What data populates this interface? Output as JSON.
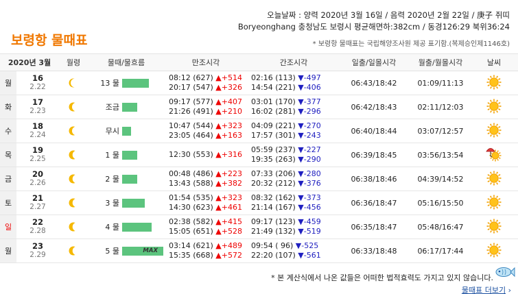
{
  "header": {
    "today_line": "오늘날짜 : 양력 2020년 3월 16일 / 음력 2020년 2월 22일 / 庚子 쥐띠",
    "location_line": "Boryeonghang 충청남도 보령시 평균해면하:382cm / 동경126:29 북위36:24",
    "title": "보령항 물때표",
    "note": "* 보령항 물때표는 국립해양조사원 제공 표기함.(복제승인제1146호)"
  },
  "table": {
    "headers": {
      "date": "2020년 3월",
      "moon": "월령",
      "tide": "물때/물흐름",
      "high": "만조시각",
      "low": "간조시각",
      "sun": "일출/일몰시각",
      "moonrise": "월출/월몰시각",
      "weather": "날씨"
    },
    "rows": [
      {
        "day": "월",
        "date": "16",
        "lunar": "2.22",
        "moon_phase": "waning-crescent-thick",
        "tide_label": "13 물",
        "tide_level": 0.65,
        "max": "",
        "hi1": "08:12 (627)",
        "hi1d": "▲+514",
        "hi2": "20:17 (547)",
        "hi2d": "▲+326",
        "lo1": "02:16 (113)",
        "lo1d": "▼-497",
        "lo2": "14:54 (221)",
        "lo2d": "▼-406",
        "sun": "06:43/18:42",
        "moon": "01:09/11:13",
        "weather": "sunny-icon"
      },
      {
        "day": "화",
        "date": "17",
        "lunar": "2.23",
        "moon_phase": "waning-crescent",
        "tide_label": "조금",
        "tide_level": 0.36,
        "max": "",
        "hi1": "09:17 (577)",
        "hi1d": "▲+407",
        "hi2": "21:26 (491)",
        "hi2d": "▲+210",
        "lo1": "03:01 (170)",
        "lo1d": "▼-377",
        "lo2": "16:02 (281)",
        "lo2d": "▼-296",
        "sun": "06:42/18:43",
        "moon": "02:11/12:03",
        "weather": "sunny-icon"
      },
      {
        "day": "수",
        "date": "18",
        "lunar": "2.24",
        "moon_phase": "waning-crescent",
        "tide_label": "무시",
        "tide_level": 0.22,
        "max": "",
        "hi1": "10:47 (544)",
        "hi1d": "▲+323",
        "hi2": "23:05 (464)",
        "hi2d": "▲+163",
        "lo1": "04:09 (221)",
        "lo1d": "▼-270",
        "lo2": "17:57 (301)",
        "lo2d": "▼-243",
        "sun": "06:40/18:44",
        "moon": "03:07/12:57",
        "weather": "sunny-icon"
      },
      {
        "day": "목",
        "date": "19",
        "lunar": "2.25",
        "moon_phase": "waning-crescent-thin",
        "tide_label": "1 물",
        "tide_level": 0.36,
        "max": "",
        "hi1": "12:30 (553)",
        "hi1d": "▲+316",
        "hi2": "",
        "hi2d": "",
        "lo1": "05:59 (237)",
        "lo1d": "▼-227",
        "lo2": "19:35 (263)",
        "lo2d": "▼-290",
        "sun": "06:39/18:45",
        "moon": "03:56/13:54",
        "weather": "umbrella-sun-icon"
      },
      {
        "day": "금",
        "date": "20",
        "lunar": "2.26",
        "moon_phase": "waning-crescent-thin",
        "tide_label": "2 물",
        "tide_level": 0.36,
        "max": "",
        "hi1": "00:48 (486)",
        "hi1d": "▲+223",
        "hi2": "13:43 (588)",
        "hi2d": "▲+382",
        "lo1": "07:33 (206)",
        "lo1d": "▼-280",
        "lo2": "20:32 (212)",
        "lo2d": "▼-376",
        "sun": "06:38/18:46",
        "moon": "04:39/14:52",
        "weather": "sunny-icon"
      },
      {
        "day": "토",
        "date": "21",
        "lunar": "2.27",
        "moon_phase": "waning-crescent-thin",
        "tide_label": "3 물",
        "tide_level": 0.55,
        "max": "",
        "hi1": "01:54 (535)",
        "hi1d": "▲+323",
        "hi2": "14:30 (623)",
        "hi2d": "▲+461",
        "lo1": "08:32 (162)",
        "lo1d": "▼-373",
        "lo2": "21:14 (167)",
        "lo2d": "▼-456",
        "sun": "06:36/18:47",
        "moon": "05:16/15:50",
        "weather": "sunny-icon"
      },
      {
        "day": "일",
        "date": "22",
        "lunar": "2.28",
        "moon_phase": "waning-crescent-thin",
        "tide_label": "4 물",
        "tide_level": 0.72,
        "max": "",
        "hi1": "02:38 (582)",
        "hi1d": "▲+415",
        "hi2": "15:05 (651)",
        "hi2d": "▲+528",
        "lo1": "09:17 (123)",
        "lo1d": "▼-459",
        "lo2": "21:49 (132)",
        "lo2d": "▼-519",
        "sun": "06:35/18:47",
        "moon": "05:48/16:47",
        "weather": "sunny-icon"
      },
      {
        "day": "월",
        "date": "23",
        "lunar": "2.29",
        "moon_phase": "waning-crescent-thin",
        "tide_label": "5 물",
        "tide_level": 1.0,
        "max": "MAX",
        "hi1": "03:14 (621)",
        "hi1d": "▲+489",
        "hi2": "15:35 (668)",
        "hi2d": "▲+572",
        "lo1": "09:54 ( 96)",
        "lo1d": "▼-525",
        "lo2": "22:20 (107)",
        "lo2d": "▼-561",
        "sun": "06:33/18:48",
        "moon": "06:17/17:44",
        "weather": "sunny-icon"
      }
    ]
  },
  "footer": {
    "disclaimer": "* 본 계산식에서 나온 값들은 어떠한 법적효력도 가지고 있지 않습니다.",
    "more_link": "물때표 더보기",
    "more_arrow": "›"
  },
  "colors": {
    "accent": "#f07800",
    "bar": "#5cc47e",
    "up": "#e00000",
    "down": "#2020c0",
    "moon": "#f5b800"
  }
}
